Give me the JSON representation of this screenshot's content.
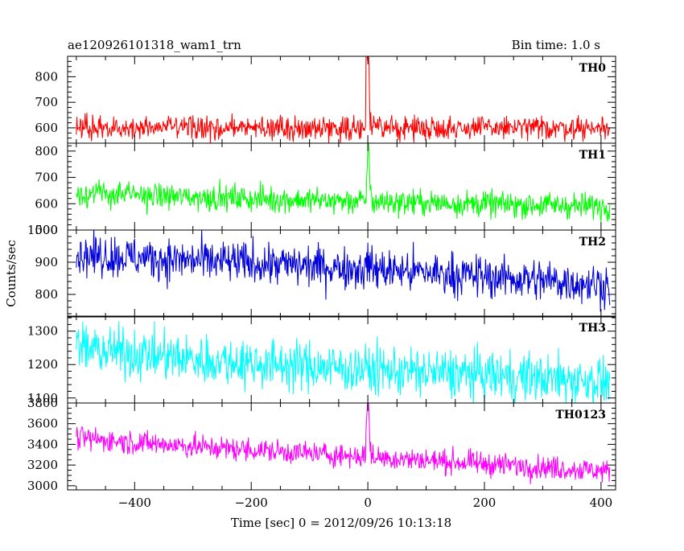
{
  "header": {
    "obs_id": "ae120926101318_wam1_trn",
    "bin_time": "Bin time: 1.0 s"
  },
  "axes": {
    "xlabel": "Time [sec] 0 = 2012/09/26 10:13:18",
    "ylabel": "Counts/sec"
  },
  "chart_data": {
    "type": "line",
    "title": "ae120926101318_wam1_trn",
    "subtitle": "Bin time: 1.0 s",
    "xlabel": "Time [sec] 0 = 2012/09/26 10:13:18",
    "ylabel": "Counts/sec",
    "xlim": [
      -515,
      425
    ],
    "x_range": [
      -500,
      415
    ],
    "bin": 1.0,
    "x_ticks": [
      -400,
      -200,
      0,
      200,
      400
    ],
    "x_tick_labels": [
      "−400",
      "−200",
      "0",
      "200",
      "400"
    ],
    "grid": false,
    "series": [
      {
        "name": "TH0",
        "color": "#ff0000",
        "ylim": [
          540,
          880
        ],
        "y_ticks": [
          600,
          700,
          800
        ],
        "trend": [
          [
            -500,
            600
          ],
          [
            415,
            600
          ]
        ],
        "noise": 22,
        "burst": [
          [
            -3,
            900
          ],
          [
            -2,
            900
          ],
          [
            -1,
            880
          ],
          [
            0,
            860
          ],
          [
            1,
            900
          ],
          [
            2,
            850
          ],
          [
            3,
            700
          ],
          [
            5,
            660
          ]
        ]
      },
      {
        "name": "TH1",
        "color": "#00ff00",
        "ylim": [
          500,
          830
        ],
        "y_ticks": [
          500,
          600,
          700,
          800
        ],
        "trend": [
          [
            -500,
            640
          ],
          [
            -300,
            625
          ],
          [
            0,
            608
          ],
          [
            415,
            590
          ]
        ],
        "noise": 24,
        "burst": [
          [
            -2,
            700
          ],
          [
            -1,
            740
          ],
          [
            0,
            820
          ],
          [
            1,
            840
          ],
          [
            2,
            800
          ],
          [
            3,
            720
          ],
          [
            5,
            670
          ]
        ]
      },
      {
        "name": "TH2",
        "color": "#0000dd",
        "ylim": [
          730,
          1000
        ],
        "y_ticks": [
          800,
          900,
          1000
        ],
        "trend": [
          [
            -500,
            925
          ],
          [
            -300,
            905
          ],
          [
            0,
            880
          ],
          [
            415,
            830
          ]
        ],
        "noise": 32,
        "burst": [
          [
            -2,
            930
          ],
          [
            0,
            960
          ],
          [
            2,
            920
          ]
        ]
      },
      {
        "name": "TH3",
        "color": "#00ffff",
        "ylim": [
          1085,
          1345
        ],
        "y_ticks": [
          1100,
          1200,
          1300
        ],
        "trend": [
          [
            -500,
            1250
          ],
          [
            -300,
            1215
          ],
          [
            0,
            1185
          ],
          [
            415,
            1150
          ]
        ],
        "noise": 36,
        "burst": []
      },
      {
        "name": "TH0123",
        "color": "#ff00ff",
        "ylim": [
          2960,
          3800
        ],
        "y_ticks": [
          3000,
          3200,
          3400,
          3600,
          3800
        ],
        "trend": [
          [
            -500,
            3460
          ],
          [
            -300,
            3380
          ],
          [
            0,
            3280
          ],
          [
            415,
            3140
          ]
        ],
        "noise": 55,
        "burst": [
          [
            -3,
            3560
          ],
          [
            -2,
            3650
          ],
          [
            -1,
            3750
          ],
          [
            0,
            3850
          ],
          [
            1,
            3820
          ],
          [
            2,
            3700
          ],
          [
            3,
            3500
          ],
          [
            5,
            3420
          ]
        ]
      }
    ]
  }
}
